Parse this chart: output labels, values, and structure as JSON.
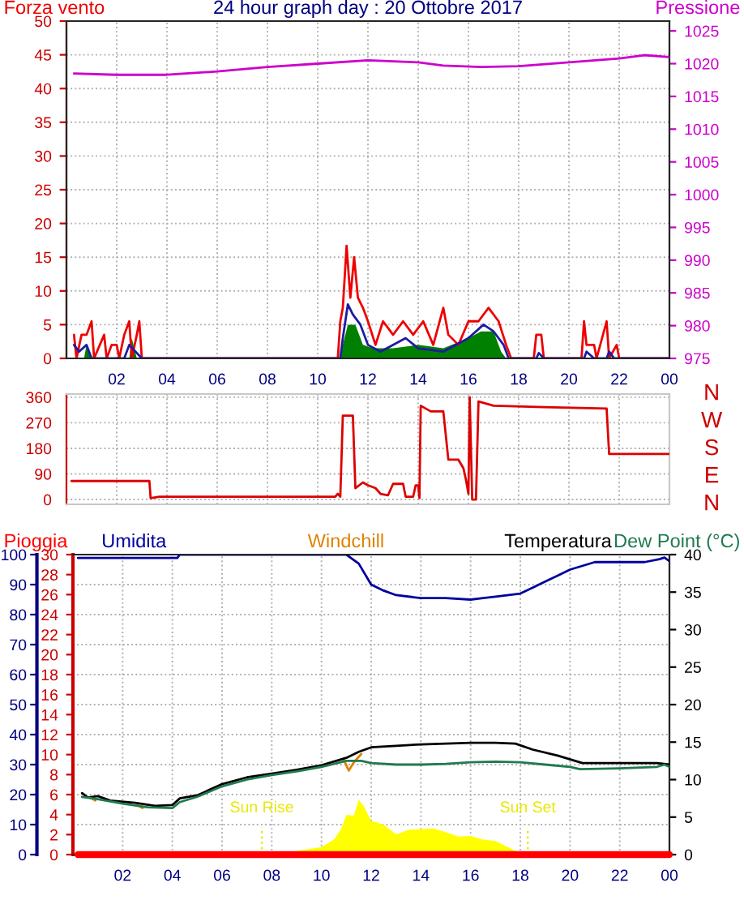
{
  "chart_data": [
    {
      "type": "line",
      "title": "24 hour graph day : 20 Ottobre 2017",
      "legend": "top",
      "grid": true,
      "xlim": [
        "2017-10-20T00:00",
        "2017-10-21T00:00"
      ],
      "xticks": [
        {
          "value": "2017-10-20T02:00",
          "label": "02"
        },
        {
          "value": "2017-10-20T04:00",
          "label": "04"
        },
        {
          "value": "2017-10-20T06:00",
          "label": "06"
        },
        {
          "value": "2017-10-20T08:00",
          "label": "08"
        },
        {
          "value": "2017-10-20T10:00",
          "label": "10"
        },
        {
          "value": "2017-10-20T12:00",
          "label": "12"
        },
        {
          "value": "2017-10-20T14:00",
          "label": "14"
        },
        {
          "value": "2017-10-20T16:00",
          "label": "16"
        },
        {
          "value": "2017-10-20T18:00",
          "label": "18"
        },
        {
          "value": "2017-10-20T20:00",
          "label": "20"
        },
        {
          "value": "2017-10-20T22:00",
          "label": "22"
        },
        {
          "value": "2017-10-21T00:00",
          "label": "00"
        }
      ],
      "ylim": [
        0,
        50
      ],
      "yticks": [
        0,
        5,
        10,
        15,
        20,
        25,
        30,
        35,
        40,
        45,
        50
      ],
      "y2lim": [
        975,
        1026.5
      ],
      "y2ticks": [
        975,
        980,
        985,
        990,
        995,
        1000,
        1005,
        1010,
        1015,
        1020,
        1025
      ],
      "series": [
        {
          "name": "Forza vento",
          "color": "#ee0000",
          "x": [
            "2017-10-20T00:18",
            "2017-10-20T00:24",
            "2017-10-20T00:36",
            "2017-10-20T00:48",
            "2017-10-20T01:00",
            "2017-10-20T01:06",
            "2017-10-20T01:30",
            "2017-10-20T01:36",
            "2017-10-20T01:48",
            "2017-10-20T02:00",
            "2017-10-20T02:06",
            "2017-10-20T02:18",
            "2017-10-20T02:30",
            "2017-10-20T02:36",
            "2017-10-20T02:48",
            "2017-10-20T02:54",
            "2017-10-20T03:00",
            "2017-10-20T10:48",
            "2017-10-20T10:54",
            "2017-10-20T11:00",
            "2017-10-20T11:09",
            "2017-10-20T11:18",
            "2017-10-20T11:27",
            "2017-10-20T11:36",
            "2017-10-20T11:48",
            "2017-10-20T12:00",
            "2017-10-20T12:18",
            "2017-10-20T12:36",
            "2017-10-20T13:00",
            "2017-10-20T13:24",
            "2017-10-20T13:48",
            "2017-10-20T14:12",
            "2017-10-20T14:36",
            "2017-10-20T15:00",
            "2017-10-20T15:12",
            "2017-10-20T15:36",
            "2017-10-20T16:00",
            "2017-10-20T16:24",
            "2017-10-20T16:48",
            "2017-10-20T17:12",
            "2017-10-20T17:30",
            "2017-10-20T17:42",
            "2017-10-20T18:36",
            "2017-10-20T18:42",
            "2017-10-20T18:54",
            "2017-10-20T19:00",
            "2017-10-20T20:30",
            "2017-10-20T20:36",
            "2017-10-20T20:42",
            "2017-10-20T21:00",
            "2017-10-20T21:06",
            "2017-10-20T21:30",
            "2017-10-20T21:36",
            "2017-10-20T21:54",
            "2017-10-20T22:00",
            "2017-10-21T00:00"
          ],
          "values": [
            3.5,
            0,
            3.5,
            3.5,
            5.5,
            0,
            3.5,
            0,
            2,
            2,
            0,
            3.5,
            5.5,
            0,
            3.5,
            5.5,
            0,
            0,
            5.5,
            7.5,
            16.7,
            9,
            15,
            9,
            7.5,
            5.5,
            2,
            5.5,
            3.5,
            5.5,
            3.5,
            5.5,
            2,
            7.5,
            3.5,
            2,
            5.5,
            5.5,
            7.5,
            5.5,
            2,
            0,
            0,
            3.5,
            3.5,
            0,
            0,
            5.5,
            2,
            2,
            0,
            5.5,
            0,
            2,
            0,
            0
          ]
        },
        {
          "type": "area",
          "color": "#008000",
          "x": [
            "2017-10-20T00:42",
            "2017-10-20T00:48",
            "2017-10-20T01:00",
            "2017-10-20T02:30",
            "2017-10-20T02:36",
            "2017-10-20T02:48",
            "2017-10-20T10:54",
            "2017-10-20T11:00",
            "2017-10-20T11:12",
            "2017-10-20T11:30",
            "2017-10-20T11:48",
            "2017-10-20T12:12",
            "2017-10-20T13:00",
            "2017-10-20T14:00",
            "2017-10-20T15:00",
            "2017-10-20T16:00",
            "2017-10-20T16:30",
            "2017-10-20T17:00",
            "2017-10-20T17:18",
            "2017-10-20T17:30"
          ],
          "values": [
            0,
            2,
            0,
            0,
            3,
            0,
            0,
            2,
            5,
            5,
            2,
            1.5,
            1.5,
            2,
            1.5,
            3,
            4,
            4,
            1,
            0
          ]
        },
        {
          "color": "#1c1ca0",
          "x": [
            "2017-10-20T00:18",
            "2017-10-20T00:30",
            "2017-10-20T00:48",
            "2017-10-20T01:00",
            "2017-10-20T02:18",
            "2017-10-20T02:30",
            "2017-10-20T03:00",
            "2017-10-20T10:54",
            "2017-10-20T11:00",
            "2017-10-20T11:12",
            "2017-10-20T11:24",
            "2017-10-20T11:42",
            "2017-10-20T12:00",
            "2017-10-20T12:30",
            "2017-10-20T13:30",
            "2017-10-20T14:00",
            "2017-10-20T15:00",
            "2017-10-20T16:00",
            "2017-10-20T16:36",
            "2017-10-20T17:00",
            "2017-10-20T17:24",
            "2017-10-20T17:36",
            "2017-10-20T18:42",
            "2017-10-20T18:48",
            "2017-10-20T19:00",
            "2017-10-20T20:36",
            "2017-10-20T20:42",
            "2017-10-20T21:00",
            "2017-10-20T21:30",
            "2017-10-20T21:36",
            "2017-10-20T21:48",
            "2017-10-21T00:00"
          ],
          "values": [
            2,
            1,
            2,
            0,
            0,
            2,
            0,
            0,
            3,
            8,
            6.5,
            5,
            2,
            1,
            3,
            1.5,
            1,
            3,
            5,
            4,
            2,
            0,
            0,
            0.8,
            0,
            0,
            1,
            0,
            0,
            1,
            0,
            0
          ]
        },
        {
          "name": "Pressione",
          "color": "#cc00cc",
          "axis": "y2",
          "x": [
            "2017-10-20T00:18",
            "2017-10-20T02:00",
            "2017-10-20T04:00",
            "2017-10-20T06:00",
            "2017-10-20T08:00",
            "2017-10-20T10:00",
            "2017-10-20T12:00",
            "2017-10-20T14:00",
            "2017-10-20T15:00",
            "2017-10-20T16:30",
            "2017-10-20T18:00",
            "2017-10-20T20:00",
            "2017-10-20T22:00",
            "2017-10-20T23:00",
            "2017-10-21T00:00"
          ],
          "values": [
            1018.5,
            1018.3,
            1018.3,
            1018.8,
            1019.5,
            1020,
            1020.5,
            1020.2,
            1019.7,
            1019.5,
            1019.6,
            1020.2,
            1020.8,
            1021.3,
            1021
          ]
        }
      ]
    },
    {
      "type": "line",
      "grid": true,
      "tick_labels": "y",
      "xlim": [
        "2017-10-20T00:00",
        "2017-10-21T00:00"
      ],
      "xticks": [
        {
          "value": "2017-10-20T02:00",
          "label": null
        },
        {
          "value": "2017-10-20T04:00",
          "label": null
        },
        {
          "value": "2017-10-20T06:00",
          "label": null
        },
        {
          "value": "2017-10-20T08:00",
          "label": null
        },
        {
          "value": "2017-10-20T10:00",
          "label": null
        },
        {
          "value": "2017-10-20T12:00",
          "label": null
        },
        {
          "value": "2017-10-20T14:00",
          "label": null
        },
        {
          "value": "2017-10-20T16:00",
          "label": null
        },
        {
          "value": "2017-10-20T18:00",
          "label": null
        },
        {
          "value": "2017-10-20T20:00",
          "label": null
        },
        {
          "value": "2017-10-20T22:00",
          "label": null
        },
        {
          "value": "2017-10-21T00:00",
          "label": null
        }
      ],
      "ylim": [
        -17,
        371
      ],
      "yticks": [
        0,
        90,
        180,
        270,
        360
      ],
      "annotations": [
        "N",
        "W",
        "S",
        "E",
        "N"
      ],
      "series": [
        {
          "color": "#dd0000",
          "x": [
            "2017-10-20T00:12",
            "2017-10-20T03:18",
            "2017-10-20T03:21",
            "2017-10-20T03:42",
            "2017-10-20T10:42",
            "2017-10-20T10:48",
            "2017-10-20T10:54",
            "2017-10-20T11:00",
            "2017-10-20T11:24",
            "2017-10-20T11:30",
            "2017-10-20T11:48",
            "2017-10-20T12:00",
            "2017-10-20T12:18",
            "2017-10-20T12:30",
            "2017-10-20T12:48",
            "2017-10-20T13:00",
            "2017-10-20T13:24",
            "2017-10-20T13:30",
            "2017-10-20T13:48",
            "2017-10-20T13:54",
            "2017-10-20T14:00",
            "2017-10-20T14:03",
            "2017-10-20T14:06",
            "2017-10-20T14:30",
            "2017-10-20T15:00",
            "2017-10-20T15:12",
            "2017-10-20T15:36",
            "2017-10-20T15:48",
            "2017-10-20T15:54",
            "2017-10-20T16:00",
            "2017-10-20T16:03",
            "2017-10-20T16:09",
            "2017-10-20T16:18",
            "2017-10-20T16:24",
            "2017-10-20T16:36",
            "2017-10-20T17:00",
            "2017-10-20T19:00",
            "2017-10-20T21:30",
            "2017-10-20T21:36",
            "2017-10-21T00:00"
          ],
          "values": [
            65,
            65,
            5,
            10,
            10,
            20,
            10,
            295,
            295,
            40,
            60,
            50,
            40,
            20,
            15,
            55,
            55,
            10,
            10,
            50,
            50,
            5,
            330,
            310,
            310,
            140,
            140,
            110,
            70,
            20,
            360,
            0,
            0,
            345,
            340,
            330,
            325,
            320,
            160,
            160
          ]
        }
      ]
    },
    {
      "type": "line",
      "grid": true,
      "legend": "top",
      "xlim": [
        "2017-10-20T00:00",
        "2017-10-21T00:00"
      ],
      "xticks": [
        {
          "value": "2017-10-20T02:00",
          "label": "02"
        },
        {
          "value": "2017-10-20T04:00",
          "label": "04"
        },
        {
          "value": "2017-10-20T06:00",
          "label": "06"
        },
        {
          "value": "2017-10-20T08:00",
          "label": "08"
        },
        {
          "value": "2017-10-20T10:00",
          "label": "10"
        },
        {
          "value": "2017-10-20T12:00",
          "label": "12"
        },
        {
          "value": "2017-10-20T14:00",
          "label": "14"
        },
        {
          "value": "2017-10-20T16:00",
          "label": "16"
        },
        {
          "value": "2017-10-20T18:00",
          "label": "18"
        },
        {
          "value": "2017-10-20T20:00",
          "label": "20"
        },
        {
          "value": "2017-10-20T22:00",
          "label": "22"
        },
        {
          "value": "2017-10-21T00:00",
          "label": "00"
        }
      ],
      "ylim": [
        0,
        100
      ],
      "yticks": [
        0,
        10,
        20,
        30,
        40,
        50,
        60,
        70,
        80,
        90,
        100
      ],
      "y2lim": [
        0,
        40
      ],
      "y2ticks": [
        0,
        5,
        10,
        15,
        20,
        25,
        30,
        35,
        40
      ],
      "y3lim": [
        0,
        30
      ],
      "y3ticks": [
        0,
        2,
        4,
        6,
        8,
        10,
        12,
        14,
        16,
        18,
        20,
        22,
        24,
        26,
        28,
        30
      ],
      "ref_lines": [
        {
          "axis": "x",
          "value": "2017-10-20T07:36",
          "label": "Sun Rise",
          "color": "#e8e800",
          "line_style": "dotted"
        },
        {
          "axis": "x",
          "value": "2017-10-20T18:18",
          "label": "Sun Set",
          "color": "#e8e800",
          "line_style": "dotted"
        }
      ],
      "series": [
        {
          "type": "area",
          "color": "#ffff00",
          "axis": "y2",
          "x": [
            "2017-10-20T08:36",
            "2017-10-20T08:42",
            "2017-10-20T09:00",
            "2017-10-20T10:00",
            "2017-10-20T10:30",
            "2017-10-20T10:48",
            "2017-10-20T11:00",
            "2017-10-20T11:18",
            "2017-10-20T11:30",
            "2017-10-20T11:42",
            "2017-10-20T12:00",
            "2017-10-20T12:30",
            "2017-10-20T13:00",
            "2017-10-20T13:30",
            "2017-10-20T14:00",
            "2017-10-20T14:30",
            "2017-10-20T15:00",
            "2017-10-20T15:30",
            "2017-10-20T16:00",
            "2017-10-20T16:30",
            "2017-10-20T17:00",
            "2017-10-20T17:30",
            "2017-10-20T18:00",
            "2017-10-20T18:12"
          ],
          "values": [
            0,
            0.4,
            0.5,
            1.0,
            2.0,
            3.5,
            5.3,
            5.2,
            7.3,
            6.5,
            4.5,
            4.0,
            2.7,
            3.3,
            3.4,
            3.5,
            3.0,
            2.4,
            2.5,
            2.0,
            1.8,
            1.0,
            0.2,
            0
          ]
        },
        {
          "name": "Pioggia",
          "color": "#ff0000",
          "axis": "y3",
          "x": [
            "2017-10-20T00:12",
            "2017-10-21T00:00"
          ],
          "values": [
            0,
            0
          ]
        },
        {
          "name": "Umidita",
          "color": "#0000a0",
          "x": [
            "2017-10-20T00:12",
            "2017-10-20T04:12",
            "2017-10-20T04:18",
            "2017-10-20T11:00",
            "2017-10-20T11:30",
            "2017-10-20T12:00",
            "2017-10-20T12:30",
            "2017-10-20T13:00",
            "2017-10-20T14:00",
            "2017-10-20T15:00",
            "2017-10-20T16:00",
            "2017-10-20T16:30",
            "2017-10-20T17:00",
            "2017-10-20T18:00",
            "2017-10-20T18:30",
            "2017-10-20T19:00",
            "2017-10-20T19:30",
            "2017-10-20T20:00",
            "2017-10-20T21:00",
            "2017-10-20T23:00",
            "2017-10-20T23:36",
            "2017-10-20T23:48",
            "2017-10-21T00:00"
          ],
          "values": [
            98.9,
            98.9,
            100,
            100,
            97,
            90,
            88,
            86.5,
            85.5,
            85.5,
            85,
            85.5,
            86,
            87,
            89,
            91,
            93,
            95,
            97.5,
            97.5,
            98.5,
            99,
            97.8
          ]
        },
        {
          "name": "Windchill",
          "color": "#e08000",
          "axis": "y2",
          "x": [
            "2017-10-20T00:42",
            "2017-10-20T00:54",
            "2017-10-20T01:00",
            "2017-10-20T02:36",
            "2017-10-20T02:48",
            "2017-10-20T03:00",
            "2017-10-20T10:54",
            "2017-10-20T11:06",
            "2017-10-20T11:18",
            "2017-10-20T11:36"
          ],
          "values": [
            7.6,
            7.2,
            null,
            6.6,
            6.2,
            null,
            12.6,
            11.2,
            12.3,
            13.4
          ]
        },
        {
          "name": "Temperatura",
          "color": "#000000",
          "axis": "y2",
          "x": [
            "2017-10-20T00:22",
            "2017-10-20T00:36",
            "2017-10-20T01:00",
            "2017-10-20T01:30",
            "2017-10-20T02:30",
            "2017-10-20T03:18",
            "2017-10-20T04:00",
            "2017-10-20T04:18",
            "2017-10-20T05:00",
            "2017-10-20T06:00",
            "2017-10-20T07:00",
            "2017-10-20T08:00",
            "2017-10-20T09:00",
            "2017-10-20T10:00",
            "2017-10-20T11:00",
            "2017-10-20T11:30",
            "2017-10-20T12:00",
            "2017-10-20T13:00",
            "2017-10-20T14:00",
            "2017-10-20T15:00",
            "2017-10-20T16:00",
            "2017-10-20T17:00",
            "2017-10-20T17:48",
            "2017-10-20T18:30",
            "2017-10-20T19:30",
            "2017-10-20T20:30",
            "2017-10-20T22:00",
            "2017-10-20T23:30",
            "2017-10-21T00:00"
          ],
          "values": [
            8.2,
            7.6,
            7.8,
            7.2,
            6.9,
            6.5,
            6.6,
            7.5,
            7.9,
            9.4,
            10.3,
            10.8,
            11.3,
            11.9,
            12.9,
            13.7,
            14.3,
            14.5,
            14.7,
            14.8,
            14.9,
            14.9,
            14.8,
            14.0,
            13.2,
            12.2,
            12.2,
            12.2,
            12.0
          ]
        },
        {
          "name": "Dew Point (°C)",
          "color": "#1f7a4f",
          "axis": "y2",
          "x": [
            "2017-10-20T00:22",
            "2017-10-20T01:00",
            "2017-10-20T02:00",
            "2017-10-20T03:00",
            "2017-10-20T04:00",
            "2017-10-20T04:18",
            "2017-10-20T05:00",
            "2017-10-20T06:00",
            "2017-10-20T07:00",
            "2017-10-20T08:00",
            "2017-10-20T09:00",
            "2017-10-20T10:00",
            "2017-10-20T11:00",
            "2017-10-20T11:36",
            "2017-10-20T12:00",
            "2017-10-20T13:00",
            "2017-10-20T14:00",
            "2017-10-20T15:00",
            "2017-10-20T16:00",
            "2017-10-20T17:00",
            "2017-10-20T18:00",
            "2017-10-20T19:00",
            "2017-10-20T20:00",
            "2017-10-20T20:24",
            "2017-10-20T22:00",
            "2017-10-20T23:30",
            "2017-10-20T23:48",
            "2017-10-21T00:00"
          ],
          "values": [
            7.7,
            7.4,
            6.8,
            6.3,
            6.2,
            7.0,
            7.7,
            9.1,
            10.0,
            10.6,
            11.1,
            11.7,
            12.5,
            12.5,
            12.2,
            12.0,
            12.0,
            12.1,
            12.3,
            12.4,
            12.3,
            12.0,
            11.7,
            11.4,
            11.5,
            11.7,
            12.0,
            11.7
          ]
        }
      ]
    }
  ]
}
